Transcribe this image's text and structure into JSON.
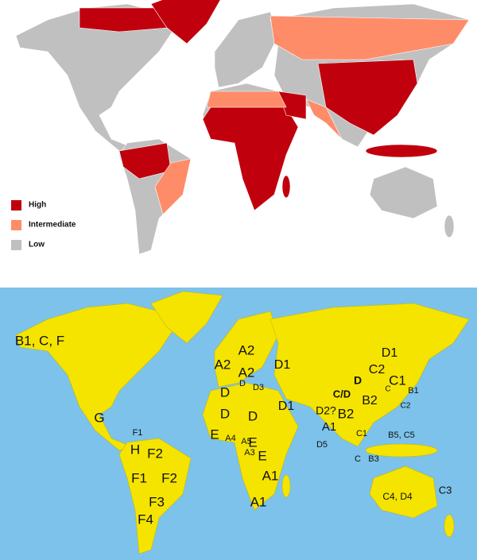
{
  "legend": {
    "items": [
      "High",
      "Intermediate",
      "Low"
    ],
    "colors": [
      "#c0000c",
      "#ff8c69",
      "#c0c0c0"
    ]
  },
  "genotype_map": {
    "labels": [
      "B1, C, F",
      "G",
      "F1",
      "H",
      "F2",
      "F1",
      "F2",
      "F3",
      "F4",
      "A2",
      "A2",
      "A2",
      "D1",
      "D",
      "D3",
      "D",
      "D",
      "D",
      "D1",
      "E",
      "A4",
      "A5",
      "E",
      "A3",
      "E",
      "A1",
      "A1",
      "D2?",
      "B2",
      "A1",
      "D5",
      "C/D",
      "D",
      "D1",
      "C2",
      "C1",
      "B2",
      "C",
      "B1",
      "C2",
      "C1",
      "B5, C5",
      "B3",
      "C",
      "C3",
      "C4, D4"
    ]
  }
}
